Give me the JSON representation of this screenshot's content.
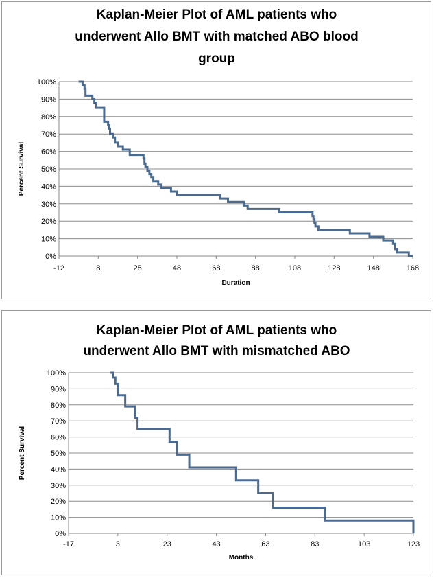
{
  "chart_data": [
    {
      "type": "line",
      "title_lines": [
        "Kaplan-Meier Plot of AML patients who",
        "underwent Allo BMT with matched ABO blood",
        "group"
      ],
      "xlabel": "Duration",
      "ylabel": "Percent Survival",
      "xlim": [
        -12,
        168
      ],
      "ylim": [
        0,
        100
      ],
      "x_ticks": [
        -12,
        8,
        28,
        48,
        68,
        88,
        108,
        128,
        148,
        168
      ],
      "y_ticks": [
        "0%",
        "10%",
        "20%",
        "30%",
        "40%",
        "50%",
        "60%",
        "70%",
        "80%",
        "90%",
        "100%"
      ],
      "grid": "horizontal",
      "line_color": "#4a6a8f",
      "series": [
        {
          "step": true,
          "points": [
            [
              -2,
              100
            ],
            [
              0,
              98
            ],
            [
              1,
              96
            ],
            [
              1.5,
              92
            ],
            [
              5,
              90
            ],
            [
              6,
              88
            ],
            [
              7,
              85
            ],
            [
              11,
              82
            ],
            [
              11,
              77
            ],
            [
              13,
              75
            ],
            [
              13.5,
              73
            ],
            [
              14,
              70
            ],
            [
              15.5,
              68
            ],
            [
              16.5,
              65
            ],
            [
              18,
              63
            ],
            [
              20.5,
              61
            ],
            [
              24,
              58
            ],
            [
              31,
              56
            ],
            [
              31.5,
              53
            ],
            [
              32,
              51
            ],
            [
              33,
              49
            ],
            [
              34,
              47
            ],
            [
              35,
              45
            ],
            [
              36,
              43
            ],
            [
              38.5,
              41
            ],
            [
              40,
              39
            ],
            [
              45,
              37
            ],
            [
              48,
              35
            ],
            [
              70,
              33
            ],
            [
              74,
              31
            ],
            [
              82,
              29
            ],
            [
              84,
              27
            ],
            [
              100,
              25
            ],
            [
              117,
              23
            ],
            [
              117.5,
              21
            ],
            [
              118,
              19
            ],
            [
              118.5,
              17
            ],
            [
              120,
              15
            ],
            [
              136,
              13
            ],
            [
              146,
              11
            ],
            [
              153,
              9
            ],
            [
              158,
              7
            ],
            [
              159,
              4
            ],
            [
              160,
              2
            ],
            [
              166,
              0
            ]
          ],
          "end_x": 168
        }
      ]
    },
    {
      "type": "line",
      "title_lines": [
        "Kaplan-Meier Plot of AML patients who",
        "underwent Allo BMT with mismatched ABO"
      ],
      "xlabel": "Months",
      "ylabel": "Percent Survival",
      "xlim": [
        -17,
        123
      ],
      "ylim": [
        0,
        100
      ],
      "x_ticks": [
        -17,
        3,
        23,
        43,
        63,
        83,
        103,
        123
      ],
      "y_ticks": [
        "0%",
        "10%",
        "20%",
        "30%",
        "40%",
        "50%",
        "60%",
        "70%",
        "80%",
        "90%",
        "100%"
      ],
      "grid": "horizontal",
      "line_color": "#4a6a8f",
      "series": [
        {
          "step": true,
          "points": [
            [
              0,
              100
            ],
            [
              1,
              97
            ],
            [
              2,
              93
            ],
            [
              3,
              86
            ],
            [
              6,
              79
            ],
            [
              10,
              72
            ],
            [
              11,
              65
            ],
            [
              24,
              57
            ],
            [
              27,
              49
            ],
            [
              32,
              41
            ],
            [
              51,
              33
            ],
            [
              60,
              25
            ],
            [
              66,
              16
            ],
            [
              87,
              8
            ],
            [
              123,
              0
            ]
          ],
          "end_x": 123
        }
      ]
    }
  ]
}
